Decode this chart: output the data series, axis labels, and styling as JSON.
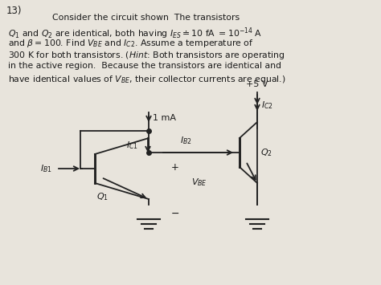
{
  "title_num": "13)",
  "bg_color": "#e8e4dc",
  "text_color": "#1a1a1a",
  "line1": "Consider the circuit shown  The transistors",
  "line2": "$Q_1$ and $Q_2$ are identical, both having $I_{ES} \\doteq 10$ fA $= 10^{-14}$ A",
  "line3": "and $\\beta = 100$. Find $V_{BE}$ and $I_{C2}$. Assume a temperature of",
  "line4": "300 K for both transistors. ($\\mathit{Hint}$: Both transistors are operating",
  "line5": "in the active region.  Because the transistors are identical and",
  "line6": "have identical values of $V_{BE}$, their collector currents are equal.)",
  "circuit": {
    "vcc_label": "+5 V",
    "i1ma_label": "1 mA",
    "ib2_label": "$I_{B2}$",
    "ic2_label": "$I_{C2}$",
    "ic1_label": "$I_{C1}$",
    "ib1_label": "$I_{B1}$",
    "q1_label": "$Q_1$",
    "q2_label": "$Q_2$",
    "vbe_label": "$V_{BE}$",
    "plus_label": "+",
    "minus_label": "−"
  }
}
